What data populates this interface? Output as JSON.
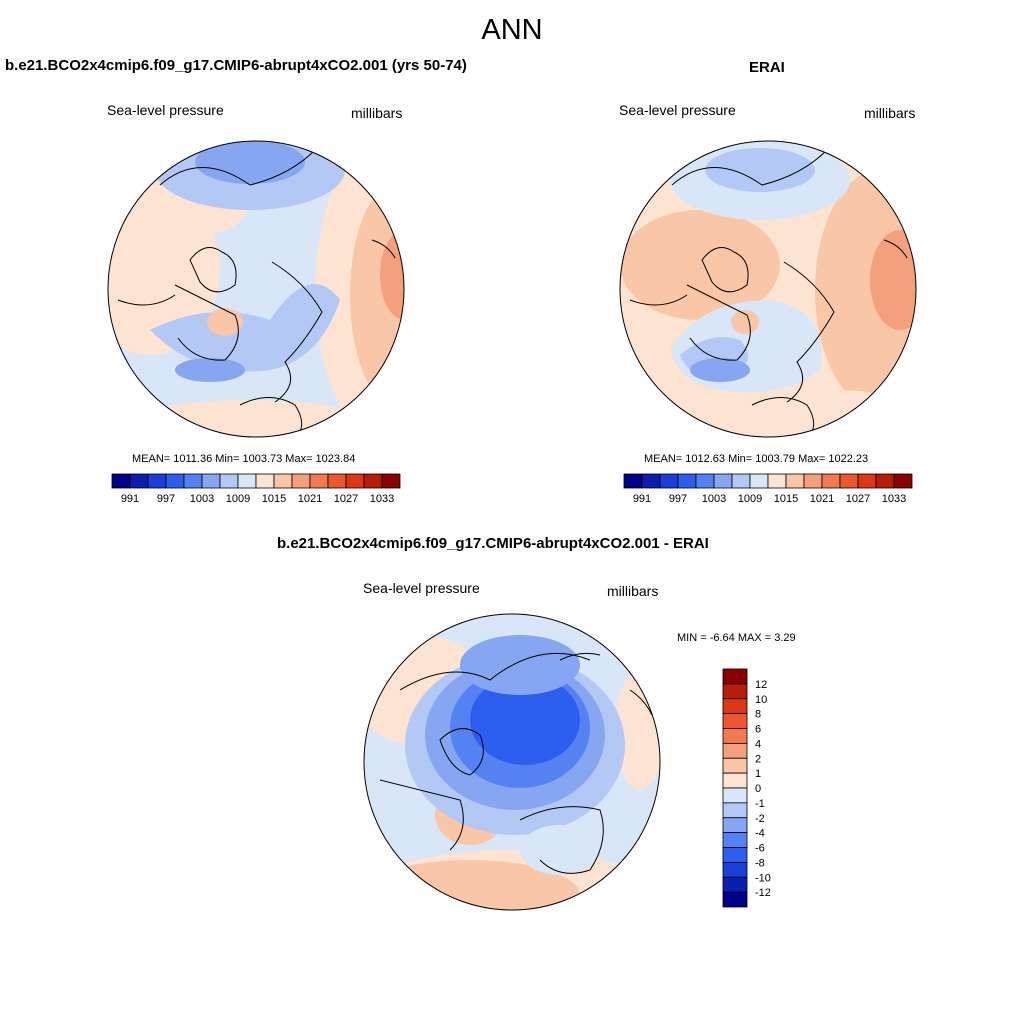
{
  "figure_title": "ANN",
  "panels": [
    {
      "title": "b.e21.BCO2x4cmip6.f09_g17.CMIP6-abrupt4xCO2.001 (yrs 50-74)",
      "left_label": "Sea-level pressure",
      "right_label": "millibars",
      "stats": "MEAN= 1011.36  Min= 1003.73  Max= 1023.84",
      "colorbar_labels": [
        "991",
        "997",
        "1003",
        "1009",
        "1015",
        "1021",
        "1027",
        "1033"
      ]
    },
    {
      "title": "ERAI",
      "left_label": "Sea-level pressure",
      "right_label": "millibars",
      "stats": "MEAN= 1012.63  Min= 1003.79  Max= 1022.23",
      "colorbar_labels": [
        "991",
        "997",
        "1003",
        "1009",
        "1015",
        "1021",
        "1027",
        "1033"
      ]
    },
    {
      "title": "b.e21.BCO2x4cmip6.f09_g17.CMIP6-abrupt4xCO2.001 - ERAI",
      "left_label": "Sea-level pressure",
      "right_label": "millibars",
      "stats": "MIN =  -6.64 MAX =   3.29",
      "colorbar_labels": [
        "12",
        "10",
        "8",
        "6",
        "4",
        "2",
        "1",
        "0",
        "-1",
        "-2",
        "-4",
        "-6",
        "-8",
        "-10",
        "-12"
      ]
    }
  ],
  "colors": {
    "abs_scale": [
      "#00008b",
      "#0a1fb0",
      "#1a3fd8",
      "#2e5ef0",
      "#5582f2",
      "#86a6f2",
      "#b3c8f4",
      "#d9e6f8",
      "#fde4d2",
      "#f9c6a8",
      "#f5a07c",
      "#f27a52",
      "#ee5630",
      "#dd3712",
      "#b41e06",
      "#8b0000"
    ],
    "diff_scale": [
      "#8b0000",
      "#b41e06",
      "#dd3712",
      "#ee5630",
      "#f5794f",
      "#f5a07c",
      "#f9c6a8",
      "#fde4d2",
      "#d9e6f8",
      "#b3c8f4",
      "#86a6f2",
      "#5582f2",
      "#2e5ef0",
      "#1a3fd8",
      "#0a1fb0",
      "#00008b"
    ]
  }
}
